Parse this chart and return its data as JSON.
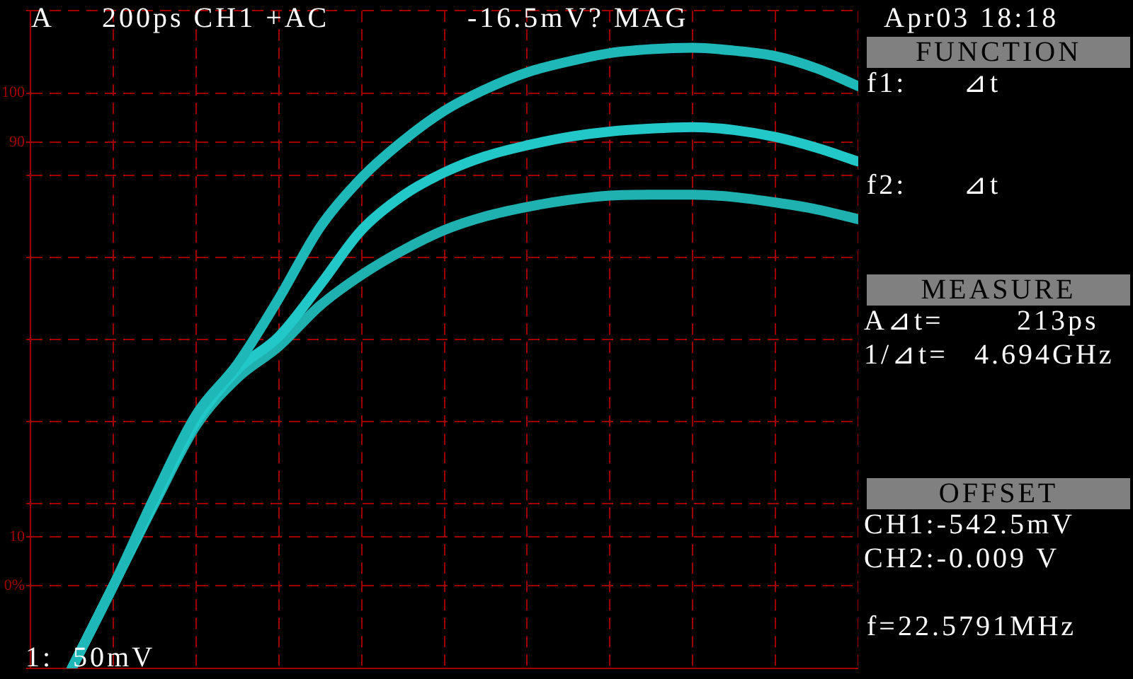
{
  "chart_data": {
    "type": "line",
    "categories": [
      null,
      null,
      null,
      null,
      null,
      null,
      null,
      null,
      null,
      null,
      null,
      null,
      null,
      null,
      null,
      null,
      null,
      null,
      null,
      null,
      null
    ],
    "series": [
      {
        "color": "#1fb8b8",
        "values": [
          null,
          -16.7,
          0,
          18.1,
          34.7,
          45,
          58.3,
          72.8,
          82.8,
          90.3,
          96.4,
          100.8,
          104.2,
          106.4,
          108.1,
          108.9,
          109.2,
          108.6,
          107.5,
          105,
          101.4
        ]
      },
      {
        "color": "#22c8c8",
        "values": [
          null,
          -16.7,
          0,
          17.2,
          33.3,
          43.9,
          50.6,
          61.1,
          72.2,
          79.2,
          83.9,
          87.2,
          89.4,
          91.1,
          92.2,
          92.8,
          93.1,
          92.5,
          91.1,
          88.9,
          86.1
        ]
      },
      {
        "color": "#1fb0b0",
        "values": [
          null,
          -16.7,
          0,
          16.7,
          32.5,
          42.2,
          48.6,
          56.9,
          63.1,
          68.1,
          72.2,
          75,
          76.9,
          78.3,
          79.2,
          79.4,
          79.4,
          78.9,
          77.8,
          76.4,
          74.4
        ]
      }
    ],
    "ylim": [
      -16.7,
      116.7
    ],
    "yticks": [
      {
        "value": -16.7,
        "label": null
      },
      {
        "value": 0,
        "label": "0%"
      },
      {
        "value": 10,
        "label": "10"
      },
      {
        "value": 16.7,
        "label": null
      },
      {
        "value": 33.3,
        "label": null
      },
      {
        "value": 50,
        "label": null
      },
      {
        "value": 66.7,
        "label": null
      },
      {
        "value": 83.3,
        "label": null
      },
      {
        "value": 90,
        "label": "90"
      },
      {
        "value": 100,
        "label": "100"
      },
      {
        "value": 116.7,
        "label": null
      }
    ],
    "grid": true,
    "tick_labels": "y",
    "legend": false,
    "line_style": "solid",
    "annotations": [
      "A",
      "200ps CH1 +AC",
      "-16.5mV? MAG",
      "Apr03 18:18",
      "FUNCTION",
      "f1:",
      "⊿t",
      "f2:",
      "⊿t",
      "MEASURE",
      "A⊿t=",
      "213ps",
      "1/⊿t=",
      "4.694GHz",
      "OFFSET",
      "CH1:-542.5mV",
      "CH2:-0.009 V",
      "f=22.5791MHz",
      "1:  50mV"
    ]
  }
}
